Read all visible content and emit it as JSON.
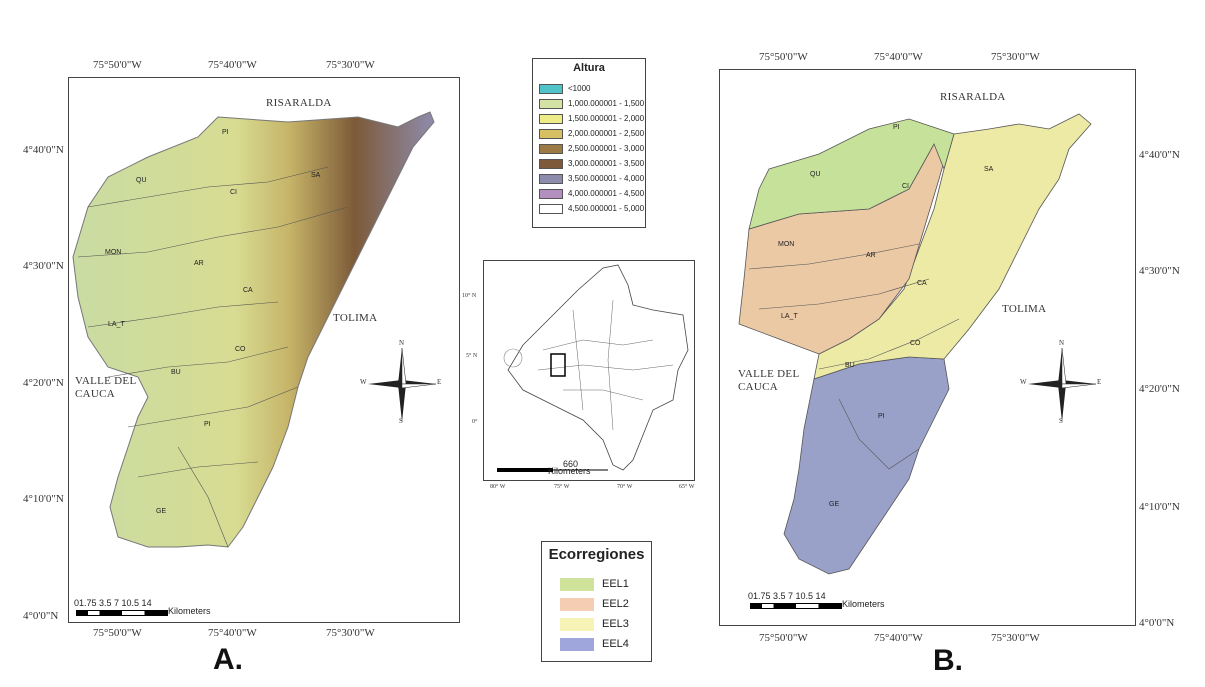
{
  "panel_a": {
    "label": "A.",
    "top_coords": [
      "75°50'0\"W",
      "75°40'0\"W",
      "75°30'0\"W"
    ],
    "bottom_coords": [
      "75°50'0\"W",
      "75°40'0\"W",
      "75°30'0\"W"
    ],
    "left_coords": [
      "4°40'0\"N",
      "4°30'0\"N",
      "4°20'0\"N",
      "4°10'0\"N",
      "4°0'0\"N"
    ],
    "regions": {
      "risaralda": "RISARALDA",
      "tolima": "TOLIMA",
      "valle_line1": "VALLE DEL",
      "valle_line2": "CAUCA"
    },
    "zones": [
      "PI",
      "QU",
      "CI",
      "SA",
      "MON",
      "AR",
      "CA",
      "LA_T",
      "CO",
      "BU",
      "PI",
      "GE"
    ],
    "scale_numbers": "01.75 3.5    7    10.5   14",
    "scale_unit": "Kilometers"
  },
  "panel_b": {
    "label": "B.",
    "top_coords": [
      "75°50'0\"W",
      "75°40'0\"W",
      "75°30'0\"W"
    ],
    "bottom_coords": [
      "75°50'0\"W",
      "75°40'0\"W",
      "75°30'0\"W"
    ],
    "right_coords": [
      "4°40'0\"N",
      "4°30'0\"N",
      "4°20'0\"N",
      "4°10'0\"N",
      "4°0'0\"N"
    ],
    "regions": {
      "risaralda": "RISARALDA",
      "tolima": "TOLIMA",
      "valle_line1": "VALLE DEL",
      "valle_line2": "CAUCA"
    },
    "zones": [
      "PI",
      "QU",
      "CI",
      "SA",
      "MON",
      "AR",
      "CA",
      "LA_T",
      "CO",
      "BU",
      "PI",
      "GE"
    ],
    "scale_numbers": "01.75 3.5    7    10.5   14",
    "scale_unit": "Kilometers"
  },
  "compass": {
    "n": "N",
    "s": "S",
    "e": "E",
    "w": "W"
  },
  "altura_legend": {
    "title": "Altura",
    "entries": [
      {
        "label": "<1000",
        "color": "#4fc3c8"
      },
      {
        "label": "1,000.000001 - 1,500",
        "color": "#d3e3a6"
      },
      {
        "label": "1,500.000001 - 2,000",
        "color": "#eeec86"
      },
      {
        "label": "2,000.000001 - 2,500",
        "color": "#d7c064"
      },
      {
        "label": "2,500.000001 - 3,000",
        "color": "#9b7a45"
      },
      {
        "label": "3,000.000001 - 3,500",
        "color": "#7f5a3a"
      },
      {
        "label": "3,500.000001 - 4,000",
        "color": "#8e8cad"
      },
      {
        "label": "4,000.000001 - 4,500",
        "color": "#b38fbf"
      },
      {
        "label": "4,500.000001 - 5,000",
        "color": "#ffffff"
      }
    ]
  },
  "inset": {
    "lat_labels": [
      "10° N",
      "5° N",
      "0°"
    ],
    "lon_labels": [
      "80° W",
      "75° W",
      "70° W",
      "65° W"
    ],
    "scale_value": "660",
    "scale_unit": "Kilometers"
  },
  "eco_legend": {
    "title": "Ecorregiones",
    "entries": [
      {
        "label": "EEL1",
        "color": "#cfe39b"
      },
      {
        "label": "EEL2",
        "color": "#f4cdb3"
      },
      {
        "label": "EEL3",
        "color": "#f7f2b6"
      },
      {
        "label": "EEL4",
        "color": "#9fa6dc"
      }
    ]
  }
}
